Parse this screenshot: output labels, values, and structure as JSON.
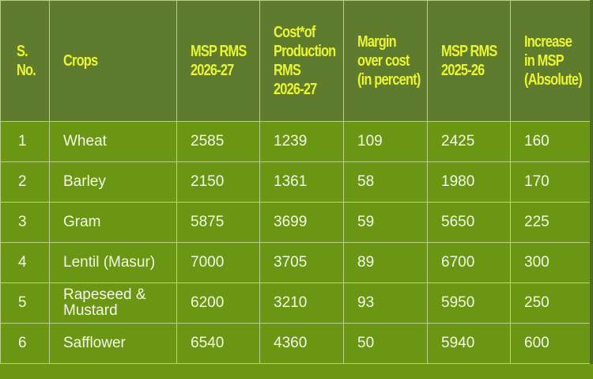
{
  "table": {
    "headers": [
      "S. No.",
      "Crops",
      "MSP RMS 2026-27",
      "Cost*of Production RMS 2026-27",
      "Margin over cost (in percent)",
      "MSP RMS 2025-26",
      "Increase in MSP (Absolute)"
    ],
    "header_lines": [
      [
        "S.",
        "No."
      ],
      [
        "Crops"
      ],
      [
        "MSP RMS",
        "2026-27"
      ],
      [
        "Cost*of",
        "Production",
        "RMS",
        "2026-27"
      ],
      [
        "Margin",
        "over cost",
        "(in percent)"
      ],
      [
        "MSP RMS",
        "2025-26"
      ],
      [
        "Increase",
        "in MSP",
        "(Absolute)"
      ]
    ],
    "rows": [
      [
        "1",
        "Wheat",
        "2585",
        "1239",
        "109",
        "2425",
        "160"
      ],
      [
        "2",
        "Barley",
        "2150",
        "1361",
        "58",
        "1980",
        "170"
      ],
      [
        "3",
        "Gram",
        "5875",
        "3699",
        "59",
        "5650",
        "225"
      ],
      [
        "4",
        "Lentil (Masur)",
        "7000",
        "3705",
        "89",
        "6700",
        "300"
      ],
      [
        "5",
        "Rapeseed & Mustard",
        "6200",
        "3210",
        "93",
        "5950",
        "250"
      ],
      [
        "6",
        "Safflower",
        "6540",
        "4360",
        "50",
        "5940",
        "600"
      ]
    ]
  },
  "colors": {
    "header_bg": "#5f7b2e",
    "header_text": "#e9f530",
    "row_bg": "#6b9614",
    "row_text": "#f4f7e6"
  }
}
